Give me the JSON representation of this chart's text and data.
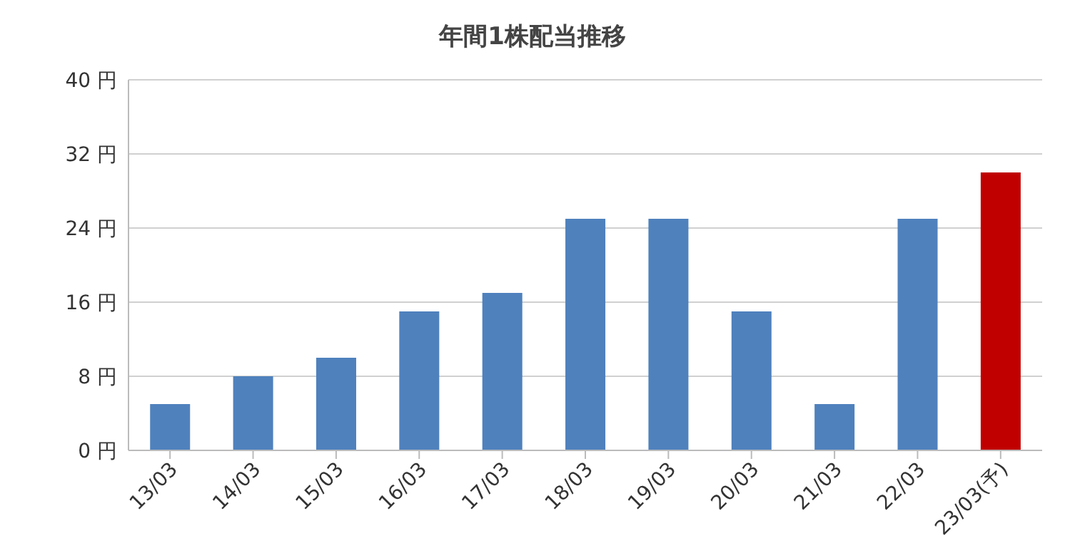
{
  "chart_data": {
    "type": "bar",
    "title": "年間1株配当推移",
    "categories": [
      "13/03",
      "14/03",
      "15/03",
      "16/03",
      "17/03",
      "18/03",
      "19/03",
      "20/03",
      "21/03",
      "22/03",
      "23/03(予)"
    ],
    "values": [
      5,
      8,
      10,
      15,
      17,
      25,
      25,
      15,
      5,
      25,
      30
    ],
    "colors": [
      "#4f81bd",
      "#4f81bd",
      "#4f81bd",
      "#4f81bd",
      "#4f81bd",
      "#4f81bd",
      "#4f81bd",
      "#4f81bd",
      "#4f81bd",
      "#4f81bd",
      "#c00000"
    ],
    "ylim": [
      0,
      40
    ],
    "yticks": [
      {
        "value": 0,
        "label": "0 円"
      },
      {
        "value": 8,
        "label": "8 円"
      },
      {
        "value": 16,
        "label": "16 円"
      },
      {
        "value": 24,
        "label": "24 円"
      },
      {
        "value": 32,
        "label": "32 円"
      },
      {
        "value": 40,
        "label": "40 円"
      }
    ],
    "grid": "y"
  }
}
